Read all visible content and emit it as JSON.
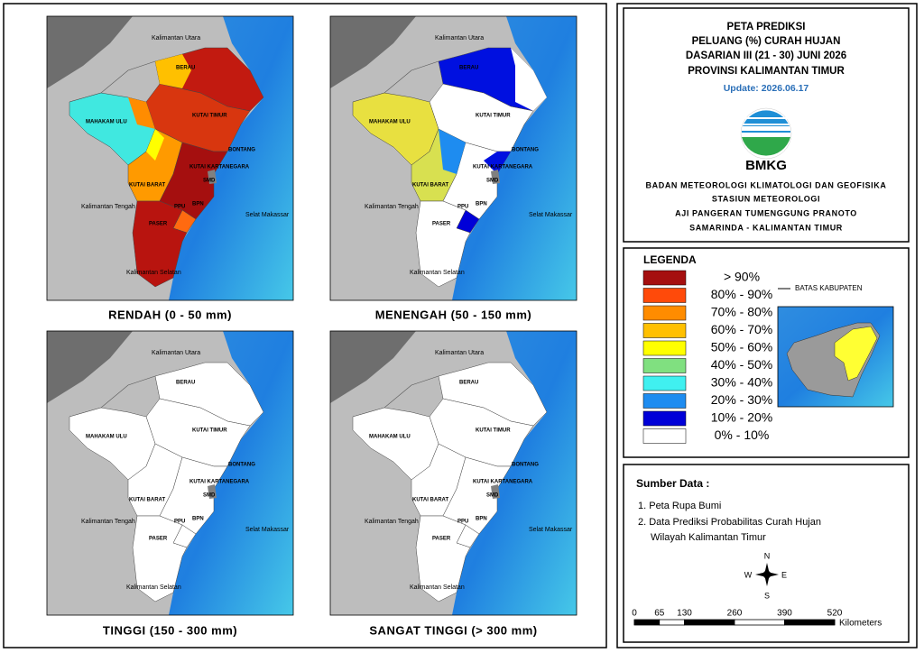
{
  "header": {
    "title_lines": [
      "PETA PREDIKSI",
      "PELUANG (%) CURAH HUJAN",
      "DASARIAN III (21 - 30) JUNI 2026",
      "PROVINSI KALIMANTAN TIMUR"
    ],
    "update": "Update: 2026.06.17",
    "logo_text": "BMKG",
    "org_lines": [
      "BADAN METEOROLOGI KLIMATOLOGI DAN GEOFISIKA",
      "STASIUN METEOROLOGI",
      "AJI PANGERAN TUMENGGUNG PRANOTO",
      "SAMARINDA - KALIMANTAN TIMUR"
    ]
  },
  "maps": [
    {
      "caption": "RENDAH (0 - 50 mm)"
    },
    {
      "caption": "MENENGAH (50 - 150 mm)"
    },
    {
      "caption": "TINGGI (150 - 300 mm)"
    },
    {
      "caption": "SANGAT TINGGI (> 300 mm)"
    }
  ],
  "map_labels": [
    "Kalimantan Utara",
    "BERAU",
    "MAHAKAM ULU",
    "KUTAI TIMUR",
    "BONTANG",
    "KUTAI KARTANEGARA",
    "KUTAI BARAT",
    "SMD",
    "PPU",
    "BPN",
    "PASER",
    "Kalimantan Tengah",
    "Selat Makassar",
    "Kalimantan Selatan"
  ],
  "legend": {
    "title": "LEGENDA",
    "items": [
      {
        "label": "> 90%",
        "color": "#a50f0f"
      },
      {
        "label": "80% - 90%",
        "color": "#ff4a0a"
      },
      {
        "label": "70% - 80%",
        "color": "#ff8c00"
      },
      {
        "label": "60% - 70%",
        "color": "#ffc000"
      },
      {
        "label": "50% - 60%",
        "color": "#ffff00"
      },
      {
        "label": "40% - 50%",
        "color": "#80e080"
      },
      {
        "label": "30% - 40%",
        "color": "#40f0f0"
      },
      {
        "label": "20% - 30%",
        "color": "#1e8cf0"
      },
      {
        "label": "10% - 20%",
        "color": "#0000d8"
      },
      {
        "label": "0% - 10%",
        "color": "#ffffff"
      }
    ],
    "boundary": "BATAS KABUPATEN"
  },
  "sources": {
    "title": "Sumber Data :",
    "items": [
      "1. Peta Rupa Bumi",
      "2. Data Prediksi Probabilitas Curah Hujan",
      "Wilayah Kalimantan Timur"
    ]
  },
  "compass": {
    "north": "N",
    "east": "E",
    "south": "S",
    "west": "W"
  },
  "scale": {
    "ticks": [
      0,
      65,
      130,
      260,
      390,
      520
    ],
    "unit": "Kilometers"
  }
}
